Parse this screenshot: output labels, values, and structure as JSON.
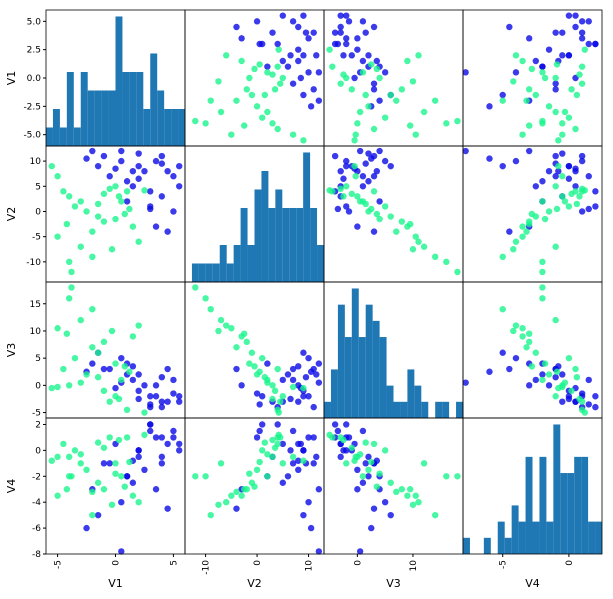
{
  "chart_data": {
    "type": "scatter_matrix",
    "hist_bins": 20,
    "hist_color": "#1f77b4",
    "variables": [
      {
        "name": "V1",
        "lim": [
          -6,
          6
        ],
        "xticks": [
          -5,
          0,
          5
        ],
        "yticks": [
          {
            "value": -5,
            "label": "-5.0"
          },
          {
            "value": -2.5,
            "label": "-2.5"
          },
          {
            "value": 0,
            "label": "0.0"
          },
          {
            "value": 2.5,
            "label": "2.5"
          },
          {
            "value": 5,
            "label": "5.0"
          }
        ]
      },
      {
        "name": "V2",
        "lim": [
          -14,
          13
        ],
        "xticks": [
          -10,
          0,
          10
        ],
        "yticks": [
          -10,
          -5,
          0,
          5,
          10
        ]
      },
      {
        "name": "V3",
        "lim": [
          -6,
          19
        ],
        "xticks": [
          0,
          10
        ],
        "yticks": [
          -5,
          0,
          5,
          10,
          15
        ]
      },
      {
        "name": "V4",
        "lim": [
          -8,
          2.5
        ],
        "xticks": [
          -5,
          0
        ],
        "yticks": [
          -8,
          -6,
          -4,
          -2,
          0,
          2
        ]
      }
    ],
    "groups": [
      {
        "color": "#0a0ae6",
        "data": [
          [
            3.5,
            4.5,
            -1,
            2,
            5,
            1,
            -2,
            3,
            4,
            0.5,
            2.5,
            -1.5,
            4,
            1.5,
            5.5,
            -0.5,
            3,
            2,
            4.5,
            0,
            3.5,
            1,
            5,
            -2.5,
            2,
            4,
            3,
            0.5,
            5.5,
            1.5
          ],
          [
            10,
            8,
            11,
            9,
            7,
            6,
            12,
            4,
            3,
            10,
            8,
            9,
            11,
            5,
            9,
            7,
            0.5,
            11.5,
            -4,
            8.5,
            -3,
            2,
            0,
            10.5,
            6.5,
            9.5,
            1,
            12,
            5,
            8
          ],
          [
            -2,
            -3,
            3,
            -1,
            1,
            2,
            4,
            -4,
            -3,
            5,
            0,
            6,
            -4,
            1,
            -2,
            3,
            -3.5,
            2,
            3,
            -0.5,
            0,
            4,
            -1.5,
            2.5,
            -2.5,
            1.5,
            -2,
            0.5,
            -3,
            3.5
          ],
          [
            1,
            0.5,
            -1,
            0,
            1.5,
            -2,
            -3,
            2,
            -0.5,
            -4,
            -1.5,
            -5,
            1,
            -2.5,
            0,
            -1,
            1.5,
            -0.5,
            -4.5,
            0.5,
            -3,
            -2,
            1,
            -6,
            0,
            -1,
            2,
            -7.8,
            0.5,
            -0.8
          ]
        ]
      },
      {
        "color": "#19f58c",
        "data": [
          [
            -5,
            -3,
            -4,
            -1,
            0.5,
            -2,
            -5.5,
            -4.5,
            -1.5,
            0,
            -3.5,
            1.5,
            -2.5,
            -0.5,
            2,
            -4,
            -1,
            0.8,
            -3,
            1,
            -2,
            -5,
            0,
            -1.5,
            2.5,
            -3.8,
            1.2,
            -0.3,
            -4.2,
            0.3
          ],
          [
            -5,
            -7,
            3,
            -2,
            2,
            -9,
            9,
            4,
            -1,
            5,
            1,
            -3,
            0,
            4.5,
            -6,
            -10,
            3.5,
            -0.5,
            2,
            4,
            -4,
            7,
            -1.5,
            1.5,
            4.2,
            -12,
            0.5,
            -7.5,
            -2.5,
            3
          ],
          [
            10.5,
            12,
            0,
            8,
            1,
            14,
            -0.5,
            3,
            6,
            -2,
            5,
            9,
            2,
            -3,
            11,
            16,
            -1,
            3.5,
            0.5,
            -4.5,
            7,
            -0.3,
            4,
            1.5,
            -5,
            18,
            2.5,
            10,
            9.5,
            -2.5
          ],
          [
            -3.5,
            -1,
            -0.5,
            -3,
            -2,
            -5,
            -0.8,
            0.5,
            -2.5,
            -1,
            0,
            -3.5,
            -1.5,
            1,
            -4,
            -2,
            0.2,
            -2.8,
            -0.3,
            1,
            -3.2,
            -0.5,
            -1.8,
            0.6,
            1.2,
            -2,
            -0.9,
            -4.2,
            -3,
            0.8
          ]
        ]
      }
    ]
  }
}
